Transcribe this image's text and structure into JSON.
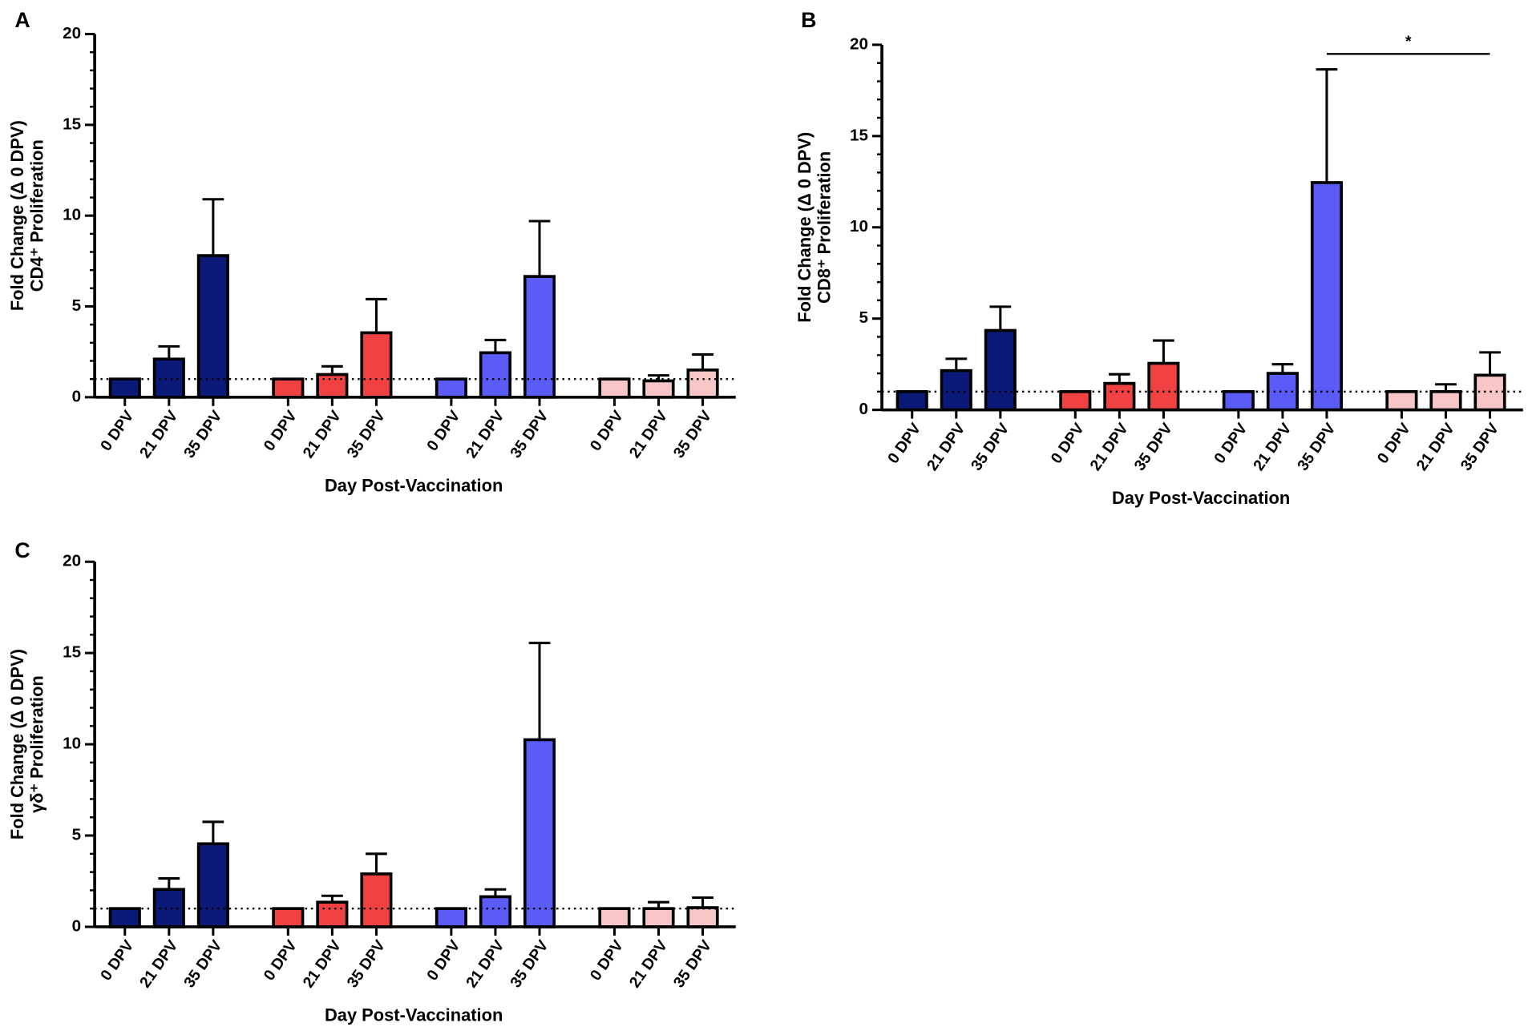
{
  "chart_data": [
    {
      "type": "bar",
      "panel": "A",
      "xlabel": "Day Post-Vaccination",
      "ylabel": [
        "Fold Change (Δ 0  DPV)",
        "CD4⁺ Proliferation"
      ],
      "categories": [
        "0 DPV",
        "21 DPV",
        "35 DPV",
        "0 DPV",
        "21 DPV",
        "35 DPV",
        "0 DPV",
        "21 DPV",
        "35 DPV",
        "0 DPV",
        "21 DPV",
        "35 DPV"
      ],
      "values": [
        1,
        2.1,
        7.8,
        1,
        1.25,
        3.55,
        1,
        2.45,
        6.65,
        1,
        0.9,
        1.5
      ],
      "errors": [
        0,
        0.7,
        3.1,
        0,
        0.45,
        1.85,
        0,
        0.7,
        3.05,
        0,
        0.3,
        0.85
      ],
      "colors": [
        "#0b1a78",
        "#0b1a78",
        "#0b1a78",
        "#f04242",
        "#f04242",
        "#f04242",
        "#5b5cf7",
        "#5b5cf7",
        "#5b5cf7",
        "#f8c6c6",
        "#f8c6c6",
        "#f8c6c6"
      ],
      "ylim": [
        0,
        20
      ],
      "yticks": [
        0,
        5,
        10,
        15,
        20
      ],
      "minor_tick_step": 1,
      "reference_line": 1
    },
    {
      "type": "bar",
      "panel": "B",
      "xlabel": "Day Post-Vaccination",
      "ylabel": [
        "Fold Change (Δ 0  DPV)",
        "CD8⁺ Proliferation"
      ],
      "categories": [
        "0 DPV",
        "21 DPV",
        "35 DPV",
        "0 DPV",
        "21 DPV",
        "35 DPV",
        "0 DPV",
        "21 DPV",
        "35 DPV",
        "0 DPV",
        "21 DPV",
        "35 DPV"
      ],
      "values": [
        1,
        2.15,
        4.35,
        1,
        1.45,
        2.55,
        1,
        2.0,
        12.45,
        1,
        1.0,
        1.9
      ],
      "errors": [
        0,
        0.65,
        1.3,
        0,
        0.5,
        1.25,
        0,
        0.5,
        6.2,
        0,
        0.4,
        1.25
      ],
      "colors": [
        "#0b1a78",
        "#0b1a78",
        "#0b1a78",
        "#f04242",
        "#f04242",
        "#f04242",
        "#5b5cf7",
        "#5b5cf7",
        "#5b5cf7",
        "#f8c6c6",
        "#f8c6c6",
        "#f8c6c6"
      ],
      "ylim": [
        0,
        20
      ],
      "yticks": [
        0,
        5,
        10,
        15,
        20
      ],
      "minor_tick_step": 1,
      "reference_line": 1,
      "significance": {
        "label": "*",
        "between": [
          8,
          11
        ],
        "y": 19.5
      }
    },
    {
      "type": "bar",
      "panel": "C",
      "xlabel": "Day Post-Vaccination",
      "ylabel": [
        "Fold Change (Δ 0  DPV)",
        "γδ⁺ Proliferation"
      ],
      "categories": [
        "0 DPV",
        "21 DPV",
        "35 DPV",
        "0 DPV",
        "21 DPV",
        "35 DPV",
        "0 DPV",
        "21 DPV",
        "35 DPV",
        "0 DPV",
        "21 DPV",
        "35 DPV"
      ],
      "values": [
        1,
        2.05,
        4.55,
        1,
        1.35,
        2.9,
        1,
        1.65,
        10.25,
        1,
        1.0,
        1.05
      ],
      "errors": [
        0,
        0.6,
        1.2,
        0,
        0.35,
        1.1,
        0,
        0.4,
        5.3,
        0,
        0.35,
        0.55
      ],
      "colors": [
        "#0b1a78",
        "#0b1a78",
        "#0b1a78",
        "#f04242",
        "#f04242",
        "#f04242",
        "#5b5cf7",
        "#5b5cf7",
        "#5b5cf7",
        "#f8c6c6",
        "#f8c6c6",
        "#f8c6c6"
      ],
      "ylim": [
        0,
        20
      ],
      "yticks": [
        0,
        5,
        10,
        15,
        20
      ],
      "minor_tick_step": 1,
      "reference_line": 1
    }
  ]
}
